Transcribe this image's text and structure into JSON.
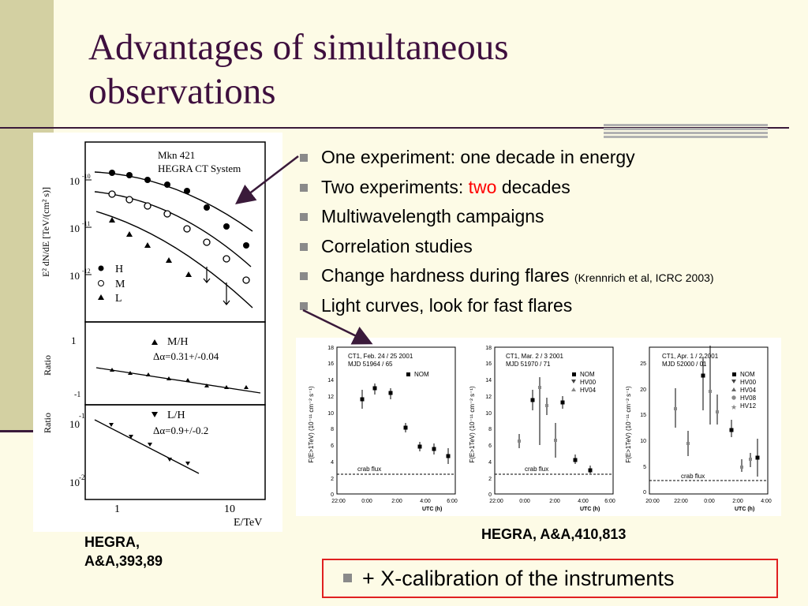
{
  "slide": {
    "title_lines": [
      "Advantages of simultaneous",
      "observations"
    ],
    "bullets": [
      {
        "before": "One experiment: one decade in energy",
        "highlight": "",
        "after": "",
        "small": ""
      },
      {
        "before": "Two experiments: ",
        "highlight": "two",
        "after": " decades",
        "small": ""
      },
      {
        "before": "Multiwavelength campaigns",
        "highlight": "",
        "after": "",
        "small": ""
      },
      {
        "before": "Correlation studies",
        "highlight": "",
        "after": "",
        "small": ""
      },
      {
        "before": "Change hardness during flares ",
        "highlight": "",
        "after": "",
        "small": "(Krennrich et al, ICRC 2003)"
      },
      {
        "before": "Light curves, look for fast flares",
        "highlight": "",
        "after": "",
        "small": ""
      }
    ],
    "highlight_color": "#ff0000",
    "caption_left_lines": [
      "HEGRA,",
      "A&A,393,89"
    ],
    "caption_right": "HEGRA, A&A,410,813",
    "xcal_text": "+ X-calibration of the instruments"
  },
  "left_figure": {
    "top": {
      "source_line1": "Mkn 421",
      "source_line2": "HEGRA CT System",
      "ylabel": "E² dN/dE [TeV/(cm² s)]",
      "yticks": [
        "10",
        "10",
        "10"
      ],
      "yexps": [
        "-10",
        "-11",
        "-12"
      ],
      "legend": [
        {
          "symbol": "circle-filled",
          "label": "H"
        },
        {
          "symbol": "circle-open",
          "label": "M"
        },
        {
          "symbol": "triangle-filled",
          "label": "L"
        }
      ]
    },
    "mid": {
      "ylabel": "Ratio",
      "label1": "M/H",
      "label2": "Δα=0.31+/-0.04",
      "yticks": [
        "1",
        "-1"
      ]
    },
    "bot": {
      "ylabel": "Ratio",
      "label1": "L/H",
      "label2": "Δα=0.9+/-0.2",
      "yticks": [
        "10",
        "10"
      ],
      "yexps": [
        "-1",
        "-2"
      ]
    },
    "xticks": [
      "1",
      "10"
    ],
    "xlabel": "E/TeV"
  },
  "right_figure": {
    "ylabel": "F(E>1TeV) (10⁻¹¹ cm⁻² s⁻¹)",
    "xlabel": "UTC (h)",
    "crab_label": "crab flux",
    "panels": [
      {
        "title1": "CT1, Feb. 24 / 25 2001",
        "title2": "MJD 51964 / 65",
        "legend": [
          "NOM"
        ],
        "yticks": [
          "0",
          "2",
          "4",
          "6",
          "8",
          "10",
          "12",
          "14",
          "16",
          "18"
        ],
        "xticks": [
          "22:00",
          "0:00",
          "2:00",
          "4:00",
          "6:00"
        ]
      },
      {
        "title1": "CT1, Mar. 2 / 3 2001",
        "title2": "MJD 51970 / 71",
        "legend": [
          "NOM",
          "HV00",
          "HV04"
        ],
        "yticks": [
          "0",
          "2",
          "4",
          "6",
          "8",
          "10",
          "12",
          "14",
          "16",
          "18"
        ],
        "xticks": [
          "22:00",
          "0:00",
          "2:00",
          "4:00",
          "6:00"
        ]
      },
      {
        "title1": "CT1, Apr. 1 / 2 2001",
        "title2": "MJD 52000 / 01",
        "legend": [
          "NOM",
          "HV00",
          "HV04",
          "HV08",
          "HV12"
        ],
        "yticks": [
          "0",
          "5",
          "10",
          "15",
          "20",
          "25"
        ],
        "xticks": [
          "20:00",
          "22:00",
          "0:00",
          "2:00",
          "4:00"
        ]
      }
    ]
  }
}
